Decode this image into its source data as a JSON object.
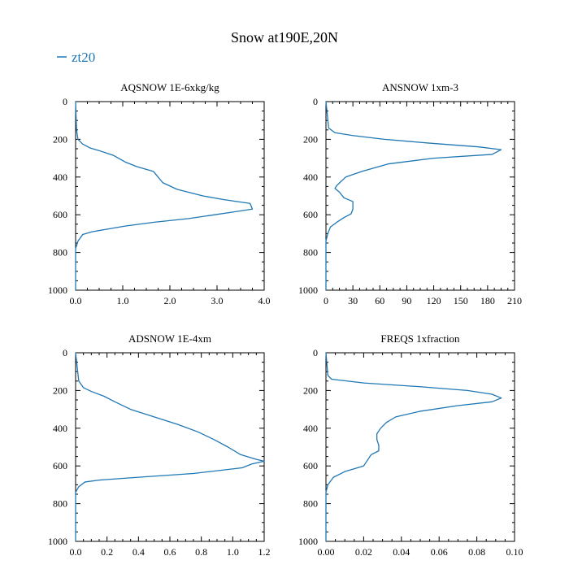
{
  "figure_title": "Snow at190E,20N",
  "legend": {
    "label": "zt20",
    "color": "#1f77b4"
  },
  "chart_data": [
    {
      "type": "line",
      "title": "AQSNOW  1E-6xkg/kg",
      "xlim": [
        0,
        4
      ],
      "ylim": [
        0,
        1000
      ],
      "x_ticks": [
        0,
        1,
        2,
        3,
        4
      ],
      "x_tick_labels": [
        "0.0",
        "1.0",
        "2.0",
        "3.0",
        "4.0"
      ],
      "y_ticks": [
        0,
        200,
        400,
        600,
        800,
        1000
      ],
      "y_tick_labels": [
        "0",
        "200",
        "400",
        "600",
        "800",
        "1000"
      ],
      "series": [
        {
          "name": "zt20",
          "x": [
            0,
            0.02,
            0.05,
            0.15,
            0.3,
            0.5,
            0.8,
            1.05,
            1.3,
            1.65,
            1.75,
            1.85,
            2.15,
            2.7,
            3.15,
            3.7,
            3.75,
            3.35,
            2.95,
            2.4,
            1.65,
            1.05,
            0.7,
            0.35,
            0.15,
            0.05,
            0,
            0
          ],
          "y": [
            0,
            150,
            200,
            225,
            245,
            260,
            285,
            320,
            345,
            370,
            400,
            430,
            465,
            500,
            520,
            540,
            570,
            585,
            600,
            620,
            640,
            660,
            675,
            690,
            705,
            740,
            780,
            1000
          ]
        }
      ]
    },
    {
      "type": "line",
      "title": "ANSNOW  1xm-3",
      "xlim": [
        0,
        210
      ],
      "ylim": [
        0,
        1000
      ],
      "x_ticks": [
        0,
        30,
        60,
        90,
        120,
        150,
        180,
        210
      ],
      "x_tick_labels": [
        "0",
        "30",
        "60",
        "90",
        "120",
        "150",
        "180",
        "210"
      ],
      "y_ticks": [
        0,
        200,
        400,
        600,
        800,
        1000
      ],
      "y_tick_labels": [
        "0",
        "200",
        "400",
        "600",
        "800",
        "1000"
      ],
      "series": [
        {
          "name": "zt20",
          "x": [
            0,
            3,
            10,
            30,
            65,
            115,
            170,
            195,
            185,
            120,
            70,
            40,
            22,
            12,
            10,
            15,
            20,
            30,
            30,
            28,
            20,
            12,
            5,
            2,
            0,
            0
          ],
          "y": [
            0,
            140,
            165,
            180,
            200,
            220,
            240,
            255,
            280,
            300,
            330,
            370,
            400,
            445,
            460,
            480,
            510,
            530,
            570,
            595,
            615,
            640,
            665,
            700,
            740,
            1000
          ]
        }
      ]
    },
    {
      "type": "line",
      "title": "ADSNOW  1E-4xm",
      "xlim": [
        0,
        1.2
      ],
      "ylim": [
        0,
        1000
      ],
      "x_ticks": [
        0,
        0.2,
        0.4,
        0.6,
        0.8,
        1.0,
        1.2
      ],
      "x_tick_labels": [
        "0.0",
        "0.2",
        "0.4",
        "0.6",
        "0.8",
        "1.0",
        "1.2"
      ],
      "y_ticks": [
        0,
        200,
        400,
        600,
        800,
        1000
      ],
      "y_tick_labels": [
        "0",
        "200",
        "400",
        "600",
        "800",
        "1000"
      ],
      "series": [
        {
          "name": "zt20",
          "x": [
            0,
            0.02,
            0.05,
            0.1,
            0.18,
            0.25,
            0.35,
            0.5,
            0.65,
            0.78,
            0.88,
            0.97,
            1.05,
            1.15,
            1.2,
            1.12,
            1.06,
            0.75,
            0.4,
            0.15,
            0.06,
            0.02,
            0,
            0
          ],
          "y": [
            0,
            150,
            185,
            205,
            230,
            260,
            300,
            340,
            380,
            420,
            460,
            500,
            540,
            565,
            575,
            590,
            610,
            640,
            660,
            675,
            685,
            710,
            740,
            1000
          ]
        }
      ]
    },
    {
      "type": "line",
      "title": "FREQS  1xfraction",
      "xlim": [
        0,
        0.1
      ],
      "ylim": [
        0,
        1000
      ],
      "x_ticks": [
        0,
        0.02,
        0.04,
        0.06,
        0.08,
        0.1
      ],
      "x_tick_labels": [
        "0.00",
        "0.02",
        "0.04",
        "0.06",
        "0.08",
        "0.10"
      ],
      "y_ticks": [
        0,
        200,
        400,
        600,
        800,
        1000
      ],
      "y_tick_labels": [
        "0",
        "200",
        "400",
        "600",
        "800",
        "1000"
      ],
      "series": [
        {
          "name": "zt20",
          "x": [
            0,
            0.001,
            0.003,
            0.02,
            0.05,
            0.075,
            0.088,
            0.093,
            0.088,
            0.07,
            0.05,
            0.037,
            0.032,
            0.029,
            0.027,
            0.027,
            0.028,
            0.028,
            0.024,
            0.02,
            0.01,
            0.004,
            0.001,
            0,
            0
          ],
          "y": [
            0,
            120,
            140,
            160,
            180,
            200,
            220,
            240,
            260,
            280,
            310,
            340,
            370,
            400,
            430,
            460,
            490,
            520,
            540,
            600,
            630,
            660,
            700,
            740,
            1000
          ]
        }
      ]
    }
  ]
}
